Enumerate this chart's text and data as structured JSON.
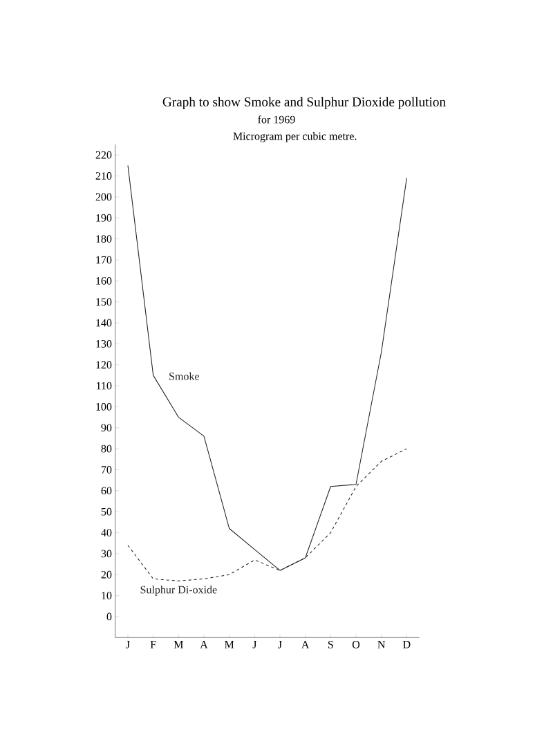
{
  "chart_data": {
    "type": "line",
    "title": "Graph to show Smoke and Sulphur Dioxide pollution",
    "subtitle": "for 1969",
    "ylabel": "Microgram per cubic metre.",
    "categories": [
      "J",
      "F",
      "M",
      "A",
      "M",
      "J",
      "J",
      "A",
      "S",
      "O",
      "N",
      "D"
    ],
    "series": [
      {
        "name": "Smoke",
        "color": "#222222",
        "line_style": "solid",
        "values": [
          215,
          115,
          95,
          86,
          42,
          32,
          22,
          28,
          62,
          63,
          126,
          209
        ]
      },
      {
        "name": "Sulphur Di-oxide",
        "color": "#222222",
        "line_style": "dashed",
        "values": [
          34,
          18,
          17,
          18,
          20,
          27,
          22,
          28,
          40,
          62,
          74,
          80
        ]
      }
    ],
    "ylim": [
      -10,
      225
    ],
    "yticks": [
      0,
      10,
      20,
      30,
      40,
      50,
      60,
      70,
      80,
      90,
      100,
      110,
      120,
      130,
      140,
      150,
      160,
      170,
      180,
      190,
      200,
      210,
      220
    ],
    "marker": "none",
    "grid": false,
    "legend": false
  }
}
